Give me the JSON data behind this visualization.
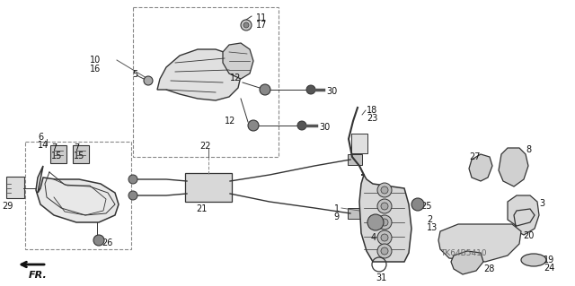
{
  "bg_color": "#ffffff",
  "line_color": "#333333",
  "text_color": "#111111",
  "watermark": "TK64B5410",
  "figsize": [
    6.4,
    3.19
  ],
  "dpi": 100
}
